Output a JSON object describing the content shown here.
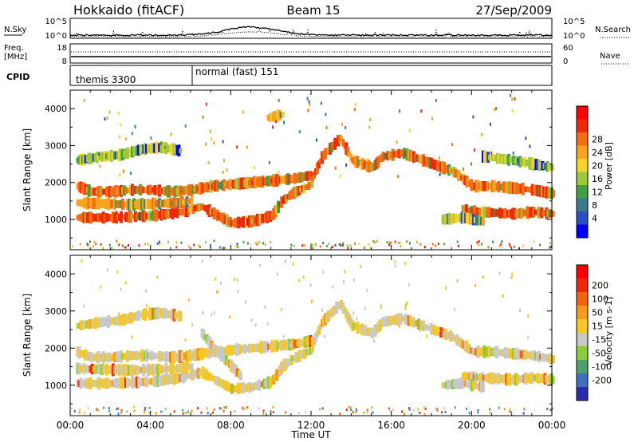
{
  "header": {
    "station": "Hokkaido (fitACF)",
    "beam": "Beam 15",
    "date": "27/Sep/2009"
  },
  "strips": {
    "nsky_label": "N.Sky",
    "nsearch_label": "N.Search",
    "nsky_ticks": [
      "10^5",
      "10^0"
    ],
    "nsearch_ticks": [
      "10^5",
      "10^0"
    ],
    "freq_label_1": "Freq.",
    "freq_label_2": "[MHz]",
    "freq_ticks": [
      "18",
      "8"
    ],
    "nave_label": "Nave",
    "nave_ticks": [
      "60",
      "0"
    ],
    "cpid_label": "CPID",
    "cpid_modes": [
      {
        "name": "themis 3300",
        "start_hour": 0
      },
      {
        "name": "normal (fast) 151",
        "start_hour": 6
      }
    ]
  },
  "chart_data": [
    {
      "type": "heatmap",
      "panel": "power",
      "ylabel": "Slant Range [km]",
      "xlabel": "Time UT",
      "x_ticks": [
        "00:00",
        "04:00",
        "08:00",
        "12:00",
        "16:00",
        "20:00",
        "00:00"
      ],
      "x_range_hours": [
        0,
        24
      ],
      "y_ticks": [
        1000,
        2000,
        3000,
        4000
      ],
      "y_range_km": [
        180,
        4500
      ],
      "colorbar": {
        "label": "Power [dB]",
        "ticks": [
          "28",
          "24",
          "20",
          "16",
          "12",
          "8",
          "4"
        ],
        "range": [
          0,
          32
        ],
        "colors": [
          "#0000ff",
          "#2a4fbf",
          "#3a7a8a",
          "#3fa040",
          "#9dc83a",
          "#f6d22a",
          "#f7a51c",
          "#f36d12",
          "#ee2a0a",
          "#ff0000"
        ]
      },
      "bands": [
        {
          "points": [
            [
              0.3,
              1050
            ],
            [
              2,
              1050
            ],
            [
              4,
              1100
            ],
            [
              5.5,
              1200
            ],
            [
              6.5,
              1350
            ],
            [
              7.3,
              1100
            ],
            [
              8,
              900
            ],
            [
              9,
              950
            ],
            [
              10,
              1100
            ],
            [
              10.5,
              1500
            ],
            [
              11,
              1700
            ],
            [
              11.8,
              1900
            ],
            [
              12,
              2000
            ]
          ],
          "value": 29
        },
        {
          "points": [
            [
              0.3,
              1450
            ],
            [
              3,
              1400
            ],
            [
              5.3,
              1450
            ],
            [
              6,
              1500
            ]
          ],
          "value": 25
        },
        {
          "points": [
            [
              0.3,
              1900
            ],
            [
              1,
              1750
            ],
            [
              2,
              1750
            ],
            [
              3,
              1800
            ],
            [
              4,
              1800
            ],
            [
              5,
              1750
            ],
            [
              6,
              1800
            ],
            [
              7,
              1900
            ],
            [
              8,
              1950
            ],
            [
              9,
              2000
            ],
            [
              10,
              2050
            ],
            [
              11,
              2100
            ],
            [
              12,
              2200
            ]
          ],
          "value": 27
        },
        {
          "points": [
            [
              0.3,
              2600
            ],
            [
              1.5,
              2700
            ],
            [
              2.5,
              2750
            ],
            [
              3.5,
              2900
            ],
            [
              4.5,
              2950
            ],
            [
              5.5,
              2850
            ]
          ],
          "value": 18
        },
        {
          "points": [
            [
              12,
              2100
            ],
            [
              12.5,
              2700
            ],
            [
              13.4,
              3200
            ],
            [
              14,
              2600
            ],
            [
              15,
              2400
            ],
            [
              15.5,
              2700
            ],
            [
              16.5,
              2800
            ],
            [
              18,
              2500
            ],
            [
              19,
              2300
            ],
            [
              20,
              1900
            ],
            [
              21,
              1900
            ],
            [
              22,
              1850
            ],
            [
              23,
              1800
            ],
            [
              24,
              1700
            ]
          ],
          "value": 27
        },
        {
          "points": [
            [
              19.5,
              1250
            ],
            [
              20.5,
              1200
            ],
            [
              22,
              1150
            ],
            [
              23,
              1200
            ],
            [
              24,
              1150
            ]
          ],
          "value": 29
        },
        {
          "points": [
            [
              18.5,
              1000
            ],
            [
              19.5,
              1050
            ],
            [
              20.5,
              950
            ]
          ],
          "value": 20
        },
        {
          "points": [
            [
              9.8,
              3750
            ],
            [
              10.2,
              3800
            ],
            [
              10.6,
              3850
            ]
          ],
          "value": 22
        },
        {
          "points": [
            [
              20.5,
              2700
            ],
            [
              22,
              2600
            ],
            [
              23,
              2500
            ],
            [
              24,
              2400
            ]
          ],
          "value": 18
        }
      ]
    },
    {
      "type": "heatmap",
      "panel": "velocity",
      "ylabel": "Slant Range [km]",
      "xlabel": "Time UT",
      "x_ticks": [
        "00:00",
        "04:00",
        "08:00",
        "12:00",
        "16:00",
        "20:00",
        "00:00"
      ],
      "x_range_hours": [
        0,
        24
      ],
      "y_ticks": [
        1000,
        2000,
        3000,
        4000
      ],
      "y_range_km": [
        180,
        4500
      ],
      "colorbar": {
        "label": "Velocity [m s-1]",
        "ticks": [
          "200",
          "100",
          "50",
          "15",
          "-15",
          "-50",
          "-100",
          "-200"
        ],
        "range": [
          -250,
          250
        ],
        "colors": [
          "#2b2bb0",
          "#3f6fc0",
          "#4aa070",
          "#8ccc3a",
          "#c8c8c8",
          "#f6c823",
          "#f59a1a",
          "#f2640f",
          "#ee2a0a",
          "#ff0000"
        ]
      },
      "bands": [
        {
          "points": [
            [
              0.3,
              1050
            ],
            [
              2,
              1050
            ],
            [
              4,
              1100
            ],
            [
              5.5,
              1200
            ],
            [
              6.5,
              1350
            ],
            [
              7.3,
              1100
            ],
            [
              8,
              900
            ],
            [
              9,
              950
            ],
            [
              10,
              1100
            ],
            [
              10.5,
              1500
            ],
            [
              11,
              1700
            ],
            [
              11.8,
              1900
            ],
            [
              12,
              2000
            ]
          ],
          "value": 0
        },
        {
          "points": [
            [
              0.3,
              1450
            ],
            [
              3,
              1400
            ],
            [
              5.3,
              1450
            ],
            [
              6,
              1500
            ]
          ],
          "value": 0
        },
        {
          "points": [
            [
              0.3,
              1900
            ],
            [
              1,
              1750
            ],
            [
              2,
              1750
            ],
            [
              3,
              1800
            ],
            [
              4,
              1800
            ],
            [
              5,
              1750
            ],
            [
              6,
              1800
            ],
            [
              7,
              1900
            ],
            [
              8,
              1950
            ],
            [
              9,
              2000
            ],
            [
              10,
              2050
            ],
            [
              11,
              2100
            ],
            [
              12,
              2200
            ]
          ],
          "value": 0
        },
        {
          "points": [
            [
              0.3,
              2600
            ],
            [
              1.5,
              2700
            ],
            [
              2.5,
              2750
            ],
            [
              3.5,
              2900
            ],
            [
              4.5,
              2950
            ],
            [
              5.5,
              2850
            ]
          ],
          "value": 0
        },
        {
          "points": [
            [
              12,
              2100
            ],
            [
              12.5,
              2700
            ],
            [
              13.4,
              3200
            ],
            [
              14,
              2600
            ],
            [
              15,
              2400
            ],
            [
              15.5,
              2700
            ],
            [
              16.5,
              2800
            ],
            [
              18,
              2500
            ],
            [
              19,
              2300
            ],
            [
              20,
              1900
            ],
            [
              21,
              1900
            ],
            [
              22,
              1850
            ],
            [
              23,
              1800
            ],
            [
              24,
              1700
            ]
          ],
          "value": 0
        },
        {
          "points": [
            [
              19.5,
              1250
            ],
            [
              20.5,
              1200
            ],
            [
              22,
              1150
            ],
            [
              23,
              1200
            ],
            [
              24,
              1150
            ]
          ],
          "value": 0
        },
        {
          "points": [
            [
              6.5,
              2400
            ],
            [
              7.3,
              1900
            ],
            [
              8,
              1500
            ],
            [
              8.5,
              1200
            ]
          ],
          "value": -40
        },
        {
          "points": [
            [
              18.5,
              1000
            ],
            [
              19.5,
              1050
            ],
            [
              20.5,
              950
            ]
          ],
          "value": -70
        }
      ]
    }
  ]
}
